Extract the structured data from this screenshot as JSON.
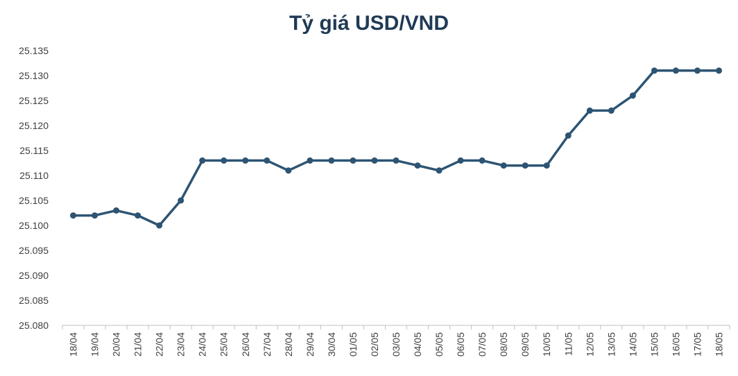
{
  "chart_data": {
    "type": "line",
    "title": "Tỷ giá USD/VND",
    "xlabel": "",
    "ylabel": "",
    "ylim": [
      25080,
      25135
    ],
    "y_tick_step": 5,
    "y_tick_labels": [
      "25.080",
      "25.085",
      "25.090",
      "25.095",
      "25.100",
      "25.105",
      "25.110",
      "25.115",
      "25.120",
      "25.125",
      "25.130",
      "25.135"
    ],
    "grid": false,
    "categories": [
      "18/04",
      "19/04",
      "20/04",
      "21/04",
      "22/04",
      "23/04",
      "24/04",
      "25/04",
      "26/04",
      "27/04",
      "28/04",
      "29/04",
      "30/04",
      "01/05",
      "02/05",
      "03/05",
      "04/05",
      "05/05",
      "06/05",
      "07/05",
      "08/05",
      "09/05",
      "10/05",
      "11/05",
      "12/05",
      "13/05",
      "14/05",
      "15/05",
      "16/05",
      "17/05",
      "18/05"
    ],
    "series": [
      {
        "values": [
          25102,
          25102,
          25103,
          25102,
          25100,
          25105,
          25113,
          25113,
          25113,
          25113,
          25111,
          25113,
          25113,
          25113,
          25113,
          25113,
          25112,
          25111,
          25113,
          25113,
          25112,
          25112,
          25112,
          25118,
          25123,
          25123,
          25126,
          25131,
          25131,
          25131,
          25131
        ]
      }
    ],
    "colors": {
      "line": "#2d5473",
      "marker": "#2d5473",
      "axis": "#bfbfbf",
      "text": "#404040",
      "title": "#1f3a55"
    }
  }
}
